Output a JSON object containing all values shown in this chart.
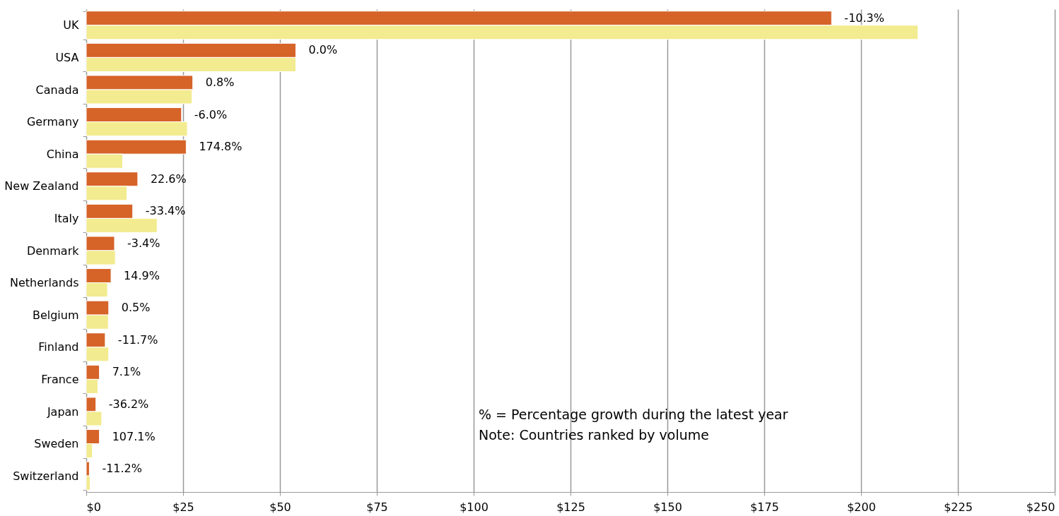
{
  "chart_data": {
    "type": "bar",
    "orientation": "horizontal",
    "categories": [
      "UK",
      "USA",
      "Canada",
      "Germany",
      "China",
      "New Zealand",
      "Italy",
      "Denmark",
      "Netherlands",
      "Belgium",
      "Finland",
      "France",
      "Japan",
      "Sweden",
      "Switzerland"
    ],
    "series": [
      {
        "color": "#d66328",
        "values": [
          192.4,
          54.1,
          27.5,
          24.6,
          25.8,
          13.3,
          12.0,
          7.3,
          6.4,
          5.8,
          4.9,
          3.4,
          2.5,
          3.4,
          0.8
        ]
      },
      {
        "color": "#f2eb8f",
        "values": [
          214.7,
          54.1,
          27.3,
          26.1,
          9.4,
          10.5,
          18.3,
          7.5,
          5.5,
          5.7,
          5.8,
          3.0,
          4.0,
          1.6,
          1.0
        ]
      }
    ],
    "xlim": [
      0,
      250
    ],
    "xticks": [
      {
        "value": 0,
        "label": "$0"
      },
      {
        "value": 25,
        "label": "$25"
      },
      {
        "value": 50,
        "label": "$50"
      },
      {
        "value": 75,
        "label": "$75"
      },
      {
        "value": 100,
        "label": "$100"
      },
      {
        "value": 125,
        "label": "$125"
      },
      {
        "value": 150,
        "label": "$150"
      },
      {
        "value": 175,
        "label": "$175"
      },
      {
        "value": 200,
        "label": "$200"
      },
      {
        "value": 225,
        "label": "$225"
      },
      {
        "value": 250,
        "label": "$250"
      }
    ],
    "grid": "x",
    "legend": false,
    "annotations": [
      {
        "text": "-10.3%",
        "x": 192.4,
        "y": "UK"
      },
      {
        "text": "0.0%",
        "x": 54.1,
        "y": "USA"
      },
      {
        "text": "0.8%",
        "x": 27.5,
        "y": "Canada"
      },
      {
        "text": "-6.0%",
        "x": 24.6,
        "y": "Germany"
      },
      {
        "text": "174.8%",
        "x": 25.8,
        "y": "China"
      },
      {
        "text": "22.6%",
        "x": 13.3,
        "y": "New Zealand"
      },
      {
        "text": "-33.4%",
        "x": 12.0,
        "y": "Italy"
      },
      {
        "text": "-3.4%",
        "x": 7.3,
        "y": "Denmark"
      },
      {
        "text": "14.9%",
        "x": 6.4,
        "y": "Netherlands"
      },
      {
        "text": "0.5%",
        "x": 5.8,
        "y": "Belgium"
      },
      {
        "text": "-11.7%",
        "x": 4.9,
        "y": "Finland"
      },
      {
        "text": "7.1%",
        "x": 3.4,
        "y": "France"
      },
      {
        "text": "-36.2%",
        "x": 2.5,
        "y": "Japan"
      },
      {
        "text": "107.1%",
        "x": 3.4,
        "y": "Sweden"
      },
      {
        "text": "-11.2%",
        "x": 0.8,
        "y": "Switzerland"
      },
      "% = Percentage growth during the latest year",
      "Note: Countries ranked by volume"
    ]
  }
}
